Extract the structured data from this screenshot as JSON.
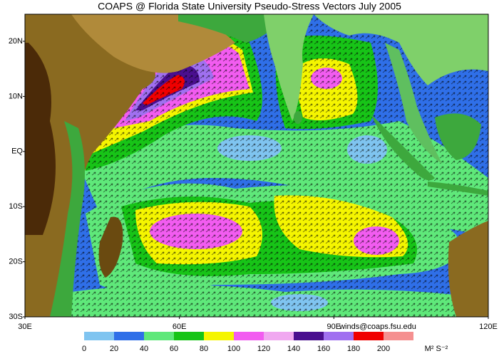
{
  "title": "COAPS @ Florida State University Pseudo-Stress Vectors July 2005",
  "lat_labels": [
    "20N",
    "10N",
    "EQ",
    "10S",
    "20S",
    "30S"
  ],
  "lon_labels": [
    "30E",
    "60E",
    "90E",
    "120E"
  ],
  "credit": "winds@coaps.fsu.edu",
  "colorbar": {
    "ticks": [
      0,
      20,
      40,
      60,
      80,
      100,
      120,
      140,
      160,
      180,
      200
    ],
    "colors": [
      "#7fc4f0",
      "#2f6fe8",
      "#5fe87a",
      "#17c417",
      "#f5f500",
      "#f25cf0",
      "#f0a8f0",
      "#4a0f8f",
      "#a070f0",
      "#f00000",
      "#f59090"
    ],
    "units": "M² S⁻²"
  }
}
